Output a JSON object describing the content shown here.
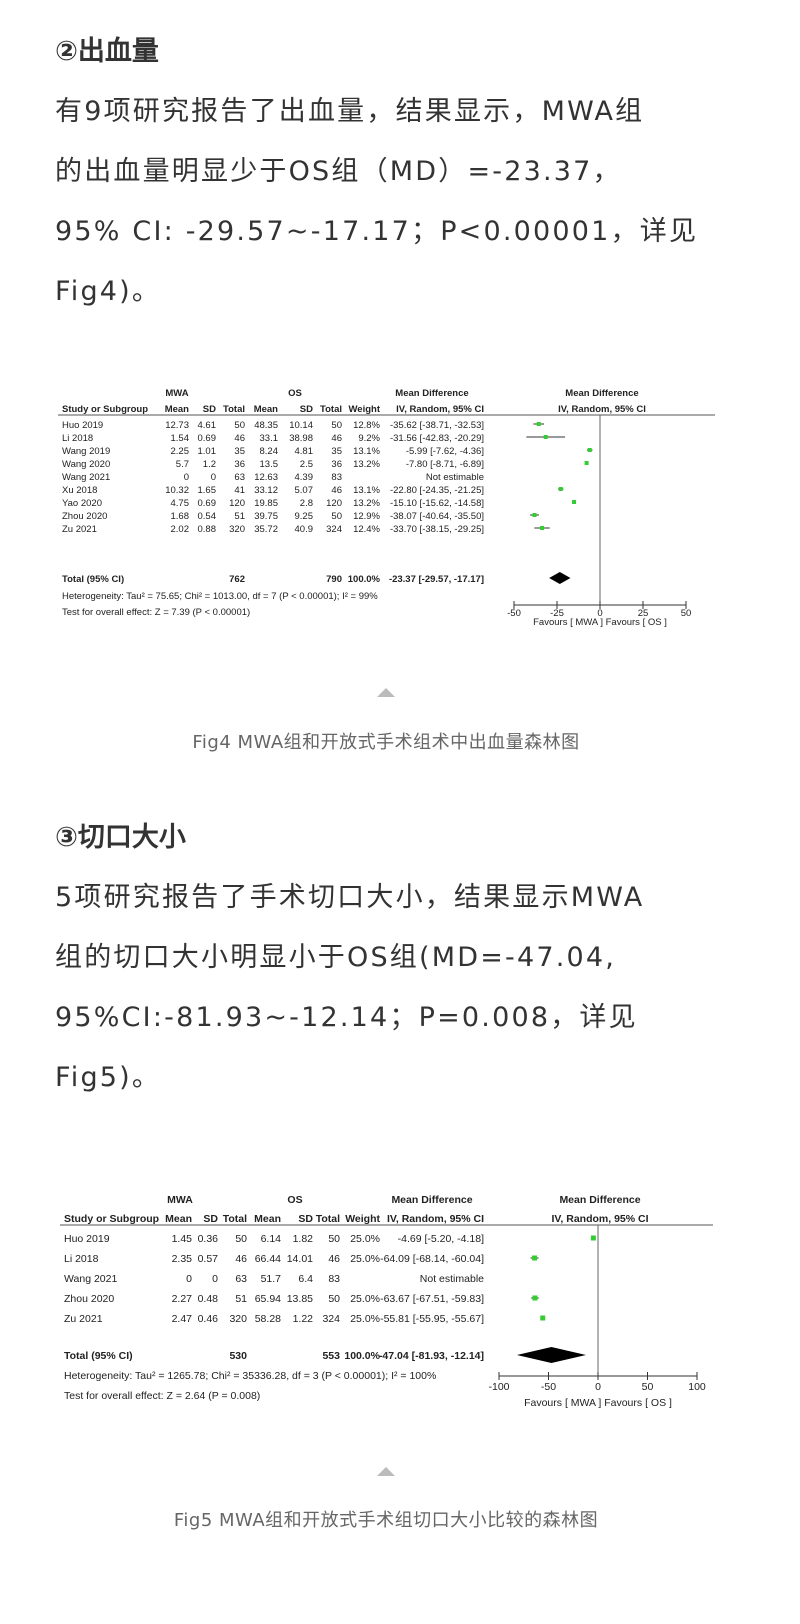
{
  "section1": {
    "heading": "②出血量",
    "lines": [
      "有9项研究报告了出血量，结果显示，MWA组",
      "的出血量明显少于OS组（MD）=-23.37，",
      "95% CI: -29.57~-17.17；P<0.00001，详见",
      "Fig4)。"
    ]
  },
  "fig4": {
    "caption": "Fig4 MWA组和开放式手术组术中出血量森林图",
    "headers": {
      "group1": "MWA",
      "group2": "OS",
      "md": "Mean Difference",
      "md_plot": "Mean Difference",
      "study": "Study or Subgroup",
      "mean": "Mean",
      "sd": "SD",
      "total": "Total",
      "weight": "Weight",
      "method": "IV, Random, 95% CI",
      "method_plot": "IV, Random, 95% CI"
    },
    "rows": [
      {
        "study": "Huo 2019",
        "m1": "12.73",
        "s1": "4.61",
        "n1": "50",
        "m2": "48.35",
        "s2": "10.14",
        "n2": "50",
        "w": "12.8%",
        "ci": "-35.62 [-38.71, -32.53]",
        "md": -35.62,
        "lo": -38.71,
        "hi": -32.53
      },
      {
        "study": "Li 2018",
        "m1": "1.54",
        "s1": "0.69",
        "n1": "46",
        "m2": "33.1",
        "s2": "38.98",
        "n2": "46",
        "w": "9.2%",
        "ci": "-31.56 [-42.83, -20.29]",
        "md": -31.56,
        "lo": -42.83,
        "hi": -20.29
      },
      {
        "study": "Wang 2019",
        "m1": "2.25",
        "s1": "1.01",
        "n1": "35",
        "m2": "8.24",
        "s2": "4.81",
        "n2": "35",
        "w": "13.1%",
        "ci": "-5.99 [-7.62, -4.36]",
        "md": -5.99,
        "lo": -7.62,
        "hi": -4.36
      },
      {
        "study": "Wang 2020",
        "m1": "5.7",
        "s1": "1.2",
        "n1": "36",
        "m2": "13.5",
        "s2": "2.5",
        "n2": "36",
        "w": "13.2%",
        "ci": "-7.80 [-8.71, -6.89]",
        "md": -7.8,
        "lo": -8.71,
        "hi": -6.89
      },
      {
        "study": "Wang 2021",
        "m1": "0",
        "s1": "0",
        "n1": "63",
        "m2": "12.63",
        "s2": "4.39",
        "n2": "83",
        "w": "",
        "ci": "Not estimable",
        "md": null,
        "lo": null,
        "hi": null
      },
      {
        "study": "Xu 2018",
        "m1": "10.32",
        "s1": "1.65",
        "n1": "41",
        "m2": "33.12",
        "s2": "5.07",
        "n2": "46",
        "w": "13.1%",
        "ci": "-22.80 [-24.35, -21.25]",
        "md": -22.8,
        "lo": -24.35,
        "hi": -21.25
      },
      {
        "study": "Yao 2020",
        "m1": "4.75",
        "s1": "0.69",
        "n1": "120",
        "m2": "19.85",
        "s2": "2.8",
        "n2": "120",
        "w": "13.2%",
        "ci": "-15.10 [-15.62, -14.58]",
        "md": -15.1,
        "lo": -15.62,
        "hi": -14.58
      },
      {
        "study": "Zhou 2020",
        "m1": "1.68",
        "s1": "0.54",
        "n1": "51",
        "m2": "39.75",
        "s2": "9.25",
        "n2": "50",
        "w": "12.9%",
        "ci": "-38.07 [-40.64, -35.50]",
        "md": -38.07,
        "lo": -40.64,
        "hi": -35.5
      },
      {
        "study": "Zu 2021",
        "m1": "2.02",
        "s1": "0.88",
        "n1": "320",
        "m2": "35.72",
        "s2": "40.9",
        "n2": "324",
        "w": "12.4%",
        "ci": "-33.70 [-38.15, -29.25]",
        "md": -33.7,
        "lo": -38.15,
        "hi": -29.25
      }
    ],
    "total": {
      "label": "Total (95% CI)",
      "n1": "762",
      "n2": "790",
      "w": "100.0%",
      "ci": "-23.37 [-29.57, -17.17]",
      "md": -23.37,
      "lo": -29.57,
      "hi": -17.17
    },
    "heterogeneity": "Heterogeneity: Tau² = 75.65; Chi² = 1013.00, df = 7 (P < 0.00001); I² = 99%",
    "overall": "Test for overall effect: Z = 7.39 (P < 0.00001)",
    "ticks": [
      -50,
      -25,
      0,
      25,
      50
    ],
    "tick_labels": [
      "-50",
      "-25",
      "0",
      "25",
      "50"
    ],
    "favours": "Favours [ MWA ]  Favours [ OS ]"
  },
  "section2": {
    "heading": "③切口大小",
    "lines": [
      "5项研究报告了手术切口大小，结果显示MWA",
      "组的切口大小明显小于OS组(MD=-47.04,",
      "95%CI:-81.93~-12.14；P=0.008，详见",
      "Fig5)。"
    ]
  },
  "fig5": {
    "caption": "Fig5 MWA组和开放式手术组切口大小比较的森林图",
    "headers": {
      "group1": "MWA",
      "group2": "OS",
      "md": "Mean Difference",
      "md_plot": "Mean Difference",
      "study": "Study or Subgroup",
      "mean": "Mean",
      "sd": "SD",
      "total": "Total",
      "weight": "Weight",
      "method": "IV, Random, 95% CI",
      "method_plot": "IV, Random, 95% CI"
    },
    "rows": [
      {
        "study": "Huo 2019",
        "m1": "1.45",
        "s1": "0.36",
        "n1": "50",
        "m2": "6.14",
        "s2": "1.82",
        "n2": "50",
        "w": "25.0%",
        "ci": "-4.69 [-5.20, -4.18]",
        "md": -4.69,
        "lo": -5.2,
        "hi": -4.18
      },
      {
        "study": "Li 2018",
        "m1": "2.35",
        "s1": "0.57",
        "n1": "46",
        "m2": "66.44",
        "s2": "14.01",
        "n2": "46",
        "w": "25.0%",
        "ci": "-64.09 [-68.14, -60.04]",
        "md": -64.09,
        "lo": -68.14,
        "hi": -60.04
      },
      {
        "study": "Wang 2021",
        "m1": "0",
        "s1": "0",
        "n1": "63",
        "m2": "51.7",
        "s2": "6.4",
        "n2": "83",
        "w": "",
        "ci": "Not estimable",
        "md": null,
        "lo": null,
        "hi": null
      },
      {
        "study": "Zhou 2020",
        "m1": "2.27",
        "s1": "0.48",
        "n1": "51",
        "m2": "65.94",
        "s2": "13.85",
        "n2": "50",
        "w": "25.0%",
        "ci": "-63.67 [-67.51, -59.83]",
        "md": -63.67,
        "lo": -67.51,
        "hi": -59.83
      },
      {
        "study": "Zu 2021",
        "m1": "2.47",
        "s1": "0.46",
        "n1": "320",
        "m2": "58.28",
        "s2": "1.22",
        "n2": "324",
        "w": "25.0%",
        "ci": "-55.81 [-55.95, -55.67]",
        "md": -55.81,
        "lo": -55.95,
        "hi": -55.67
      }
    ],
    "total": {
      "label": "Total (95% CI)",
      "n1": "530",
      "n2": "553",
      "w": "100.0%",
      "ci": "-47.04 [-81.93, -12.14]",
      "md": -47.04,
      "lo": -81.93,
      "hi": -12.14
    },
    "heterogeneity": "Heterogeneity: Tau² = 1265.78; Chi² = 35336.28, df = 3 (P < 0.00001); I² = 100%",
    "overall": "Test for overall effect: Z = 2.64 (P = 0.008)",
    "ticks": [
      -100,
      -50,
      0,
      50,
      100
    ],
    "tick_labels": [
      "-100",
      "-50",
      "0",
      "50",
      "100"
    ],
    "favours": "Favours [ MWA ]  Favours [ OS ]"
  },
  "colors": {
    "marker": "#33cc33",
    "text": "#333333",
    "caption": "#666666"
  }
}
